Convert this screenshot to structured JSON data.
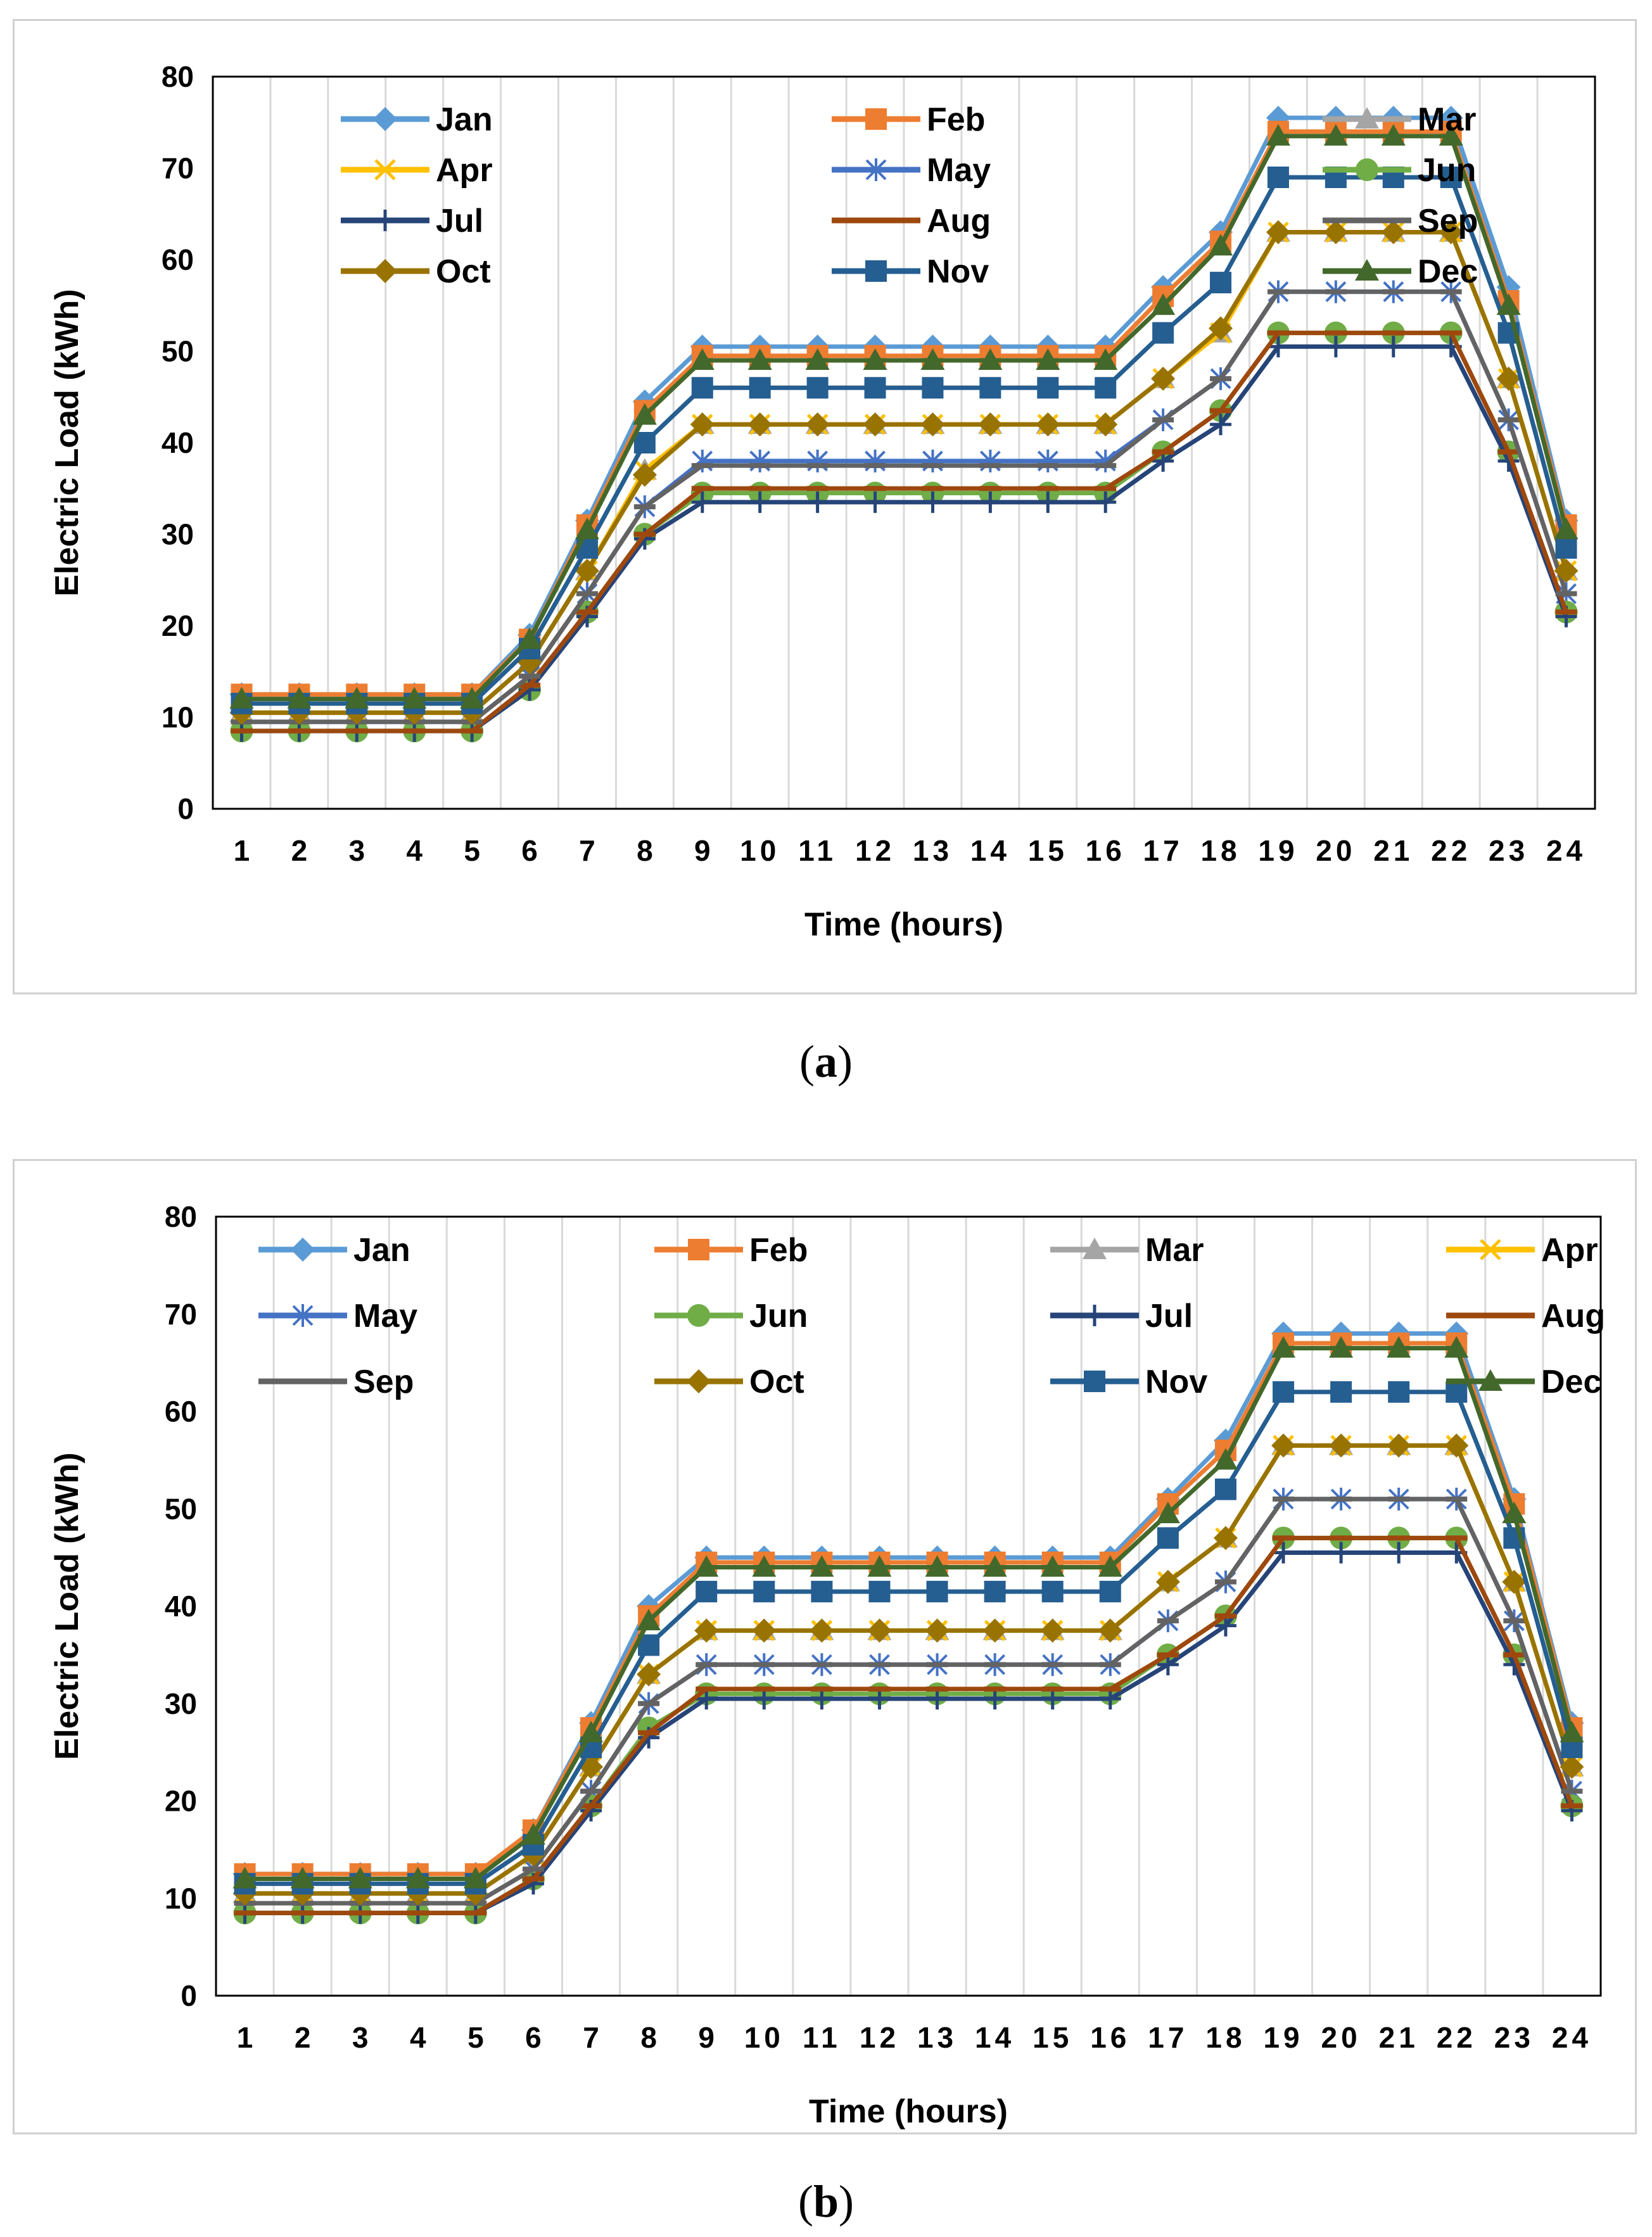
{
  "colors": {
    "Jan": "#5b9bd5",
    "Feb": "#ed7d31",
    "Mar": "#a5a5a5",
    "Apr": "#ffc000",
    "May": "#4472c4",
    "Jun": "#70ad47",
    "Jul": "#264478",
    "Aug": "#9e480e",
    "Sep": "#636363",
    "Oct": "#997300",
    "Nov": "#255e91",
    "Dec": "#43682b"
  },
  "markers": {
    "Jan": "diamond",
    "Feb": "square",
    "Mar": "triangle",
    "Apr": "x",
    "May": "star",
    "Jun": "circle",
    "Jul": "plus",
    "Aug": "dash",
    "Sep": "dash",
    "Oct": "diamond",
    "Nov": "square",
    "Dec": "triangle"
  },
  "chart_data": [
    {
      "id": "a",
      "type": "line",
      "caption_letter": "a",
      "xlabel": "Time (hours)",
      "ylabel": "Electric Load (kWh)",
      "ylim": [
        0,
        80
      ],
      "yticks": [
        "0",
        "10",
        "20",
        "30",
        "40",
        "50",
        "60",
        "70",
        "80"
      ],
      "categories": [
        "1",
        "2",
        "3",
        "4",
        "5",
        "6",
        "7",
        "8",
        "9",
        "10",
        "11",
        "12",
        "13",
        "14",
        "15",
        "16",
        "17",
        "18",
        "19",
        "20",
        "21",
        "22",
        "23",
        "24"
      ],
      "legend_columns": 3,
      "series": [
        {
          "name": "Jan",
          "values": [
            12.5,
            12.5,
            12.5,
            12.5,
            12.5,
            19,
            31.5,
            44.5,
            50.5,
            50.5,
            50.5,
            50.5,
            50.5,
            50.5,
            50.5,
            50.5,
            57,
            63,
            75.5,
            75.5,
            75.5,
            75.5,
            57,
            31.5
          ]
        },
        {
          "name": "Feb",
          "values": [
            12.5,
            12.5,
            12.5,
            12.5,
            12.5,
            18.5,
            31,
            43.5,
            49.5,
            49.5,
            49.5,
            49.5,
            49.5,
            49.5,
            49.5,
            49.5,
            56,
            62,
            74,
            74,
            74,
            74,
            55.5,
            31
          ]
        },
        {
          "name": "Mar",
          "values": [
            10.5,
            10.5,
            10.5,
            10.5,
            10.5,
            16,
            26,
            37,
            42,
            42,
            42,
            42,
            42,
            42,
            42,
            42,
            47,
            52,
            63,
            63,
            63,
            63,
            47,
            26
          ]
        },
        {
          "name": "Apr",
          "values": [
            10.5,
            10.5,
            10.5,
            10.5,
            10.5,
            16,
            26,
            37,
            42,
            42,
            42,
            42,
            42,
            42,
            42,
            42,
            47,
            52,
            63,
            63,
            63,
            63,
            47,
            26
          ]
        },
        {
          "name": "May",
          "values": [
            9.5,
            9.5,
            9.5,
            9.5,
            9.5,
            14.5,
            23.5,
            33,
            38,
            38,
            38,
            38,
            38,
            38,
            38,
            38,
            42.5,
            47,
            56.5,
            56.5,
            56.5,
            56.5,
            42.5,
            23.5
          ]
        },
        {
          "name": "Jun",
          "values": [
            8.5,
            8.5,
            8.5,
            8.5,
            8.5,
            13,
            21.5,
            30,
            34.5,
            34.5,
            34.5,
            34.5,
            34.5,
            34.5,
            34.5,
            34.5,
            39,
            43.5,
            52,
            52,
            52,
            52,
            39,
            21.5
          ]
        },
        {
          "name": "Jul",
          "values": [
            8.5,
            8.5,
            8.5,
            8.5,
            8.5,
            13,
            21,
            29.5,
            33.5,
            33.5,
            33.5,
            33.5,
            33.5,
            33.5,
            33.5,
            33.5,
            38,
            42,
            50.5,
            50.5,
            50.5,
            50.5,
            38,
            21
          ]
        },
        {
          "name": "Aug",
          "values": [
            8.5,
            8.5,
            8.5,
            8.5,
            8.5,
            13.5,
            21.5,
            30,
            35,
            35,
            35,
            35,
            35,
            35,
            35,
            35,
            39,
            43.5,
            52,
            52,
            52,
            52,
            39,
            21.5
          ]
        },
        {
          "name": "Sep",
          "values": [
            9.5,
            9.5,
            9.5,
            9.5,
            9.5,
            14.5,
            23.5,
            33,
            37.5,
            37.5,
            37.5,
            37.5,
            37.5,
            37.5,
            37.5,
            37.5,
            42.5,
            47,
            56.5,
            56.5,
            56.5,
            56.5,
            42.5,
            23.5
          ]
        },
        {
          "name": "Oct",
          "values": [
            10.5,
            10.5,
            10.5,
            10.5,
            10.5,
            16,
            26,
            36.5,
            42,
            42,
            42,
            42,
            42,
            42,
            42,
            42,
            47,
            52.5,
            63,
            63,
            63,
            63,
            47,
            26
          ]
        },
        {
          "name": "Nov",
          "values": [
            11.5,
            11.5,
            11.5,
            11.5,
            11.5,
            17.5,
            28.5,
            40,
            46,
            46,
            46,
            46,
            46,
            46,
            46,
            46,
            52,
            57.5,
            69,
            69,
            69,
            69,
            52,
            28.5
          ]
        },
        {
          "name": "Dec",
          "values": [
            12,
            12,
            12,
            12,
            12,
            18.5,
            30.5,
            43,
            49,
            49,
            49,
            49,
            49,
            49,
            49,
            49,
            55,
            61.5,
            73.5,
            73.5,
            73.5,
            73.5,
            55,
            30.5
          ]
        }
      ]
    },
    {
      "id": "b",
      "type": "line",
      "caption_letter": "b",
      "xlabel": "Time (hours)",
      "ylabel": "Electric Load (kWh)",
      "ylim": [
        0,
        80
      ],
      "yticks": [
        "0",
        "10",
        "20",
        "30",
        "40",
        "50",
        "60",
        "70",
        "80"
      ],
      "categories": [
        "1",
        "2",
        "3",
        "4",
        "5",
        "6",
        "7",
        "8",
        "9",
        "10",
        "11",
        "12",
        "13",
        "14",
        "15",
        "16",
        "17",
        "18",
        "19",
        "20",
        "21",
        "22",
        "23",
        "24"
      ],
      "legend_columns": 4,
      "series": [
        {
          "name": "Jan",
          "values": [
            12.5,
            12.5,
            12.5,
            12.5,
            12.5,
            17,
            28,
            40,
            45,
            45,
            45,
            45,
            45,
            45,
            45,
            45,
            51,
            57,
            68,
            68,
            68,
            68,
            51,
            28
          ]
        },
        {
          "name": "Feb",
          "values": [
            12.5,
            12.5,
            12.5,
            12.5,
            12.5,
            17,
            27.5,
            39,
            44.5,
            44.5,
            44.5,
            44.5,
            44.5,
            44.5,
            44.5,
            44.5,
            50.5,
            56,
            67,
            67,
            67,
            67,
            50.5,
            27.5
          ]
        },
        {
          "name": "Mar",
          "values": [
            10.5,
            10.5,
            10.5,
            10.5,
            10.5,
            14.5,
            23.5,
            33,
            37.5,
            37.5,
            37.5,
            37.5,
            37.5,
            37.5,
            37.5,
            37.5,
            42.5,
            47,
            56.5,
            56.5,
            56.5,
            56.5,
            42.5,
            23.5
          ]
        },
        {
          "name": "Apr",
          "values": [
            10.5,
            10.5,
            10.5,
            10.5,
            10.5,
            14.5,
            23.5,
            33,
            37.5,
            37.5,
            37.5,
            37.5,
            37.5,
            37.5,
            37.5,
            37.5,
            42.5,
            47,
            56.5,
            56.5,
            56.5,
            56.5,
            42.5,
            23.5
          ]
        },
        {
          "name": "May",
          "values": [
            9.5,
            9.5,
            9.5,
            9.5,
            9.5,
            13,
            21,
            30,
            34,
            34,
            34,
            34,
            34,
            34,
            34,
            34,
            38.5,
            42.5,
            51,
            51,
            51,
            51,
            38.5,
            21
          ]
        },
        {
          "name": "Jun",
          "values": [
            8.5,
            8.5,
            8.5,
            8.5,
            8.5,
            12,
            19.5,
            27.5,
            31,
            31,
            31,
            31,
            31,
            31,
            31,
            31,
            35,
            39,
            47,
            47,
            47,
            47,
            35,
            19.5
          ]
        },
        {
          "name": "Jul",
          "values": [
            8.5,
            8.5,
            8.5,
            8.5,
            8.5,
            11.5,
            19,
            26.5,
            30.5,
            30.5,
            30.5,
            30.5,
            30.5,
            30.5,
            30.5,
            30.5,
            34,
            38,
            45.5,
            45.5,
            45.5,
            45.5,
            34,
            19
          ]
        },
        {
          "name": "Aug",
          "values": [
            8.5,
            8.5,
            8.5,
            8.5,
            8.5,
            12,
            19.5,
            27,
            31.5,
            31.5,
            31.5,
            31.5,
            31.5,
            31.5,
            31.5,
            31.5,
            35,
            39,
            47,
            47,
            47,
            47,
            35,
            19.5
          ]
        },
        {
          "name": "Sep",
          "values": [
            9.5,
            9.5,
            9.5,
            9.5,
            9.5,
            13,
            21,
            30,
            34,
            34,
            34,
            34,
            34,
            34,
            34,
            34,
            38.5,
            42.5,
            51,
            51,
            51,
            51,
            38.5,
            21
          ]
        },
        {
          "name": "Oct",
          "values": [
            10.5,
            10.5,
            10.5,
            10.5,
            10.5,
            14.5,
            23.5,
            33,
            37.5,
            37.5,
            37.5,
            37.5,
            37.5,
            37.5,
            37.5,
            37.5,
            42.5,
            47,
            56.5,
            56.5,
            56.5,
            56.5,
            42.5,
            23.5
          ]
        },
        {
          "name": "Nov",
          "values": [
            11.5,
            11.5,
            11.5,
            11.5,
            11.5,
            15.5,
            25.5,
            36,
            41.5,
            41.5,
            41.5,
            41.5,
            41.5,
            41.5,
            41.5,
            41.5,
            47,
            52,
            62,
            62,
            62,
            62,
            47,
            25.5
          ]
        },
        {
          "name": "Dec",
          "values": [
            12,
            12,
            12,
            12,
            12,
            16.5,
            27,
            38.5,
            44,
            44,
            44,
            44,
            44,
            44,
            44,
            44,
            49.5,
            55,
            66.5,
            66.5,
            66.5,
            66.5,
            49.5,
            27
          ]
        }
      ]
    }
  ]
}
